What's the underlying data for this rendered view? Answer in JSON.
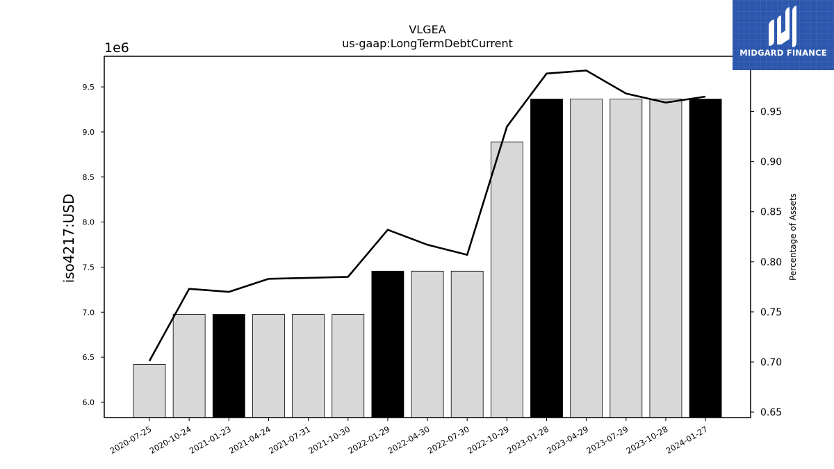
{
  "chart_data": {
    "type": "bar",
    "title": "VLGEA",
    "subtitle": "us-gaap:LongTermDebtCurrent",
    "ylabel": "iso4217:USD",
    "y2label": "Percentage of Assets",
    "y_offset_label": "1e6",
    "categories": [
      "2020-07-25",
      "2020-10-24",
      "2021-01-23",
      "2021-04-24",
      "2021-07-31",
      "2021-10-30",
      "2022-01-29",
      "2022-04-30",
      "2022-07-30",
      "2022-10-29",
      "2023-01-28",
      "2023-04-29",
      "2023-07-29",
      "2023-10-28",
      "2024-01-27"
    ],
    "series": [
      {
        "type": "bar",
        "values": [
          6.42,
          6.975,
          6.975,
          6.975,
          6.975,
          6.975,
          7.455,
          7.455,
          7.455,
          8.89,
          9.365,
          9.365,
          9.365,
          9.365,
          9.365
        ],
        "highlight": [
          false,
          false,
          true,
          false,
          false,
          false,
          true,
          false,
          false,
          false,
          true,
          false,
          false,
          false,
          true
        ]
      },
      {
        "type": "line",
        "axis": "right",
        "values": [
          0.701,
          0.773,
          0.77,
          0.783,
          0.784,
          0.785,
          0.832,
          0.817,
          0.807,
          0.935,
          0.988,
          0.991,
          0.968,
          0.959,
          0.965
        ]
      }
    ],
    "ylim": [
      5.83,
      9.84
    ],
    "y2lim": [
      0.6445,
      1.0052
    ],
    "yticks": [
      "6.0",
      "6.5",
      "7.0",
      "7.5",
      "8.0",
      "8.5",
      "9.0",
      "9.5"
    ],
    "y2ticks": [
      "0.65",
      "0.70",
      "0.75",
      "0.80",
      "0.85",
      "0.90",
      "0.95"
    ],
    "grid": false,
    "colors": {
      "bar": "#d8d8d8",
      "bar_highlight": "#000000",
      "line": "#000000",
      "axis": "#000000"
    }
  },
  "logo": {
    "name": "MIDGARD FINANCE",
    "background": "#2c57ad"
  }
}
